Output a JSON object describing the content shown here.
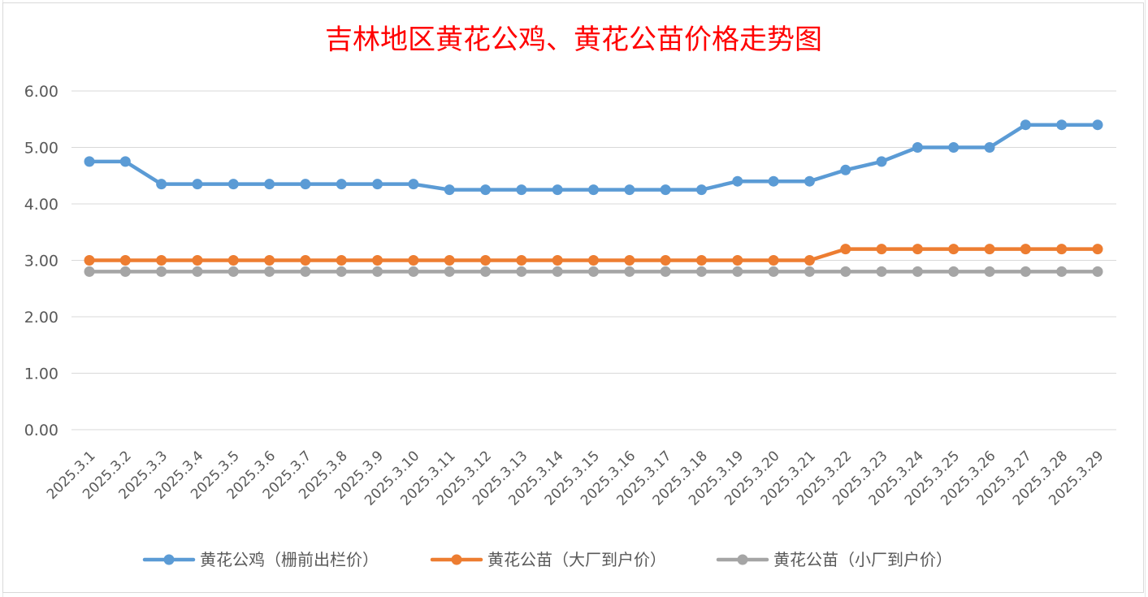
{
  "chart_data": {
    "type": "line",
    "title": "吉林地区黄花公鸡、黄花公苗价格走势图",
    "xlabel": "",
    "ylabel": "",
    "ylim": [
      0,
      6
    ],
    "ytick_step": 1,
    "ytick_labels": [
      "0.00",
      "1.00",
      "2.00",
      "3.00",
      "4.00",
      "5.00",
      "6.00"
    ],
    "grid": true,
    "legend_position": "bottom-center",
    "categories": [
      "2025.3.1",
      "2025.3.2",
      "2025.3.3",
      "2025.3.4",
      "2025.3.5",
      "2025.3.6",
      "2025.3.7",
      "2025.3.8",
      "2025.3.9",
      "2025.3.10",
      "2025.3.11",
      "2025.3.12",
      "2025.3.13",
      "2025.3.14",
      "2025.3.15",
      "2025.3.16",
      "2025.3.17",
      "2025.3.18",
      "2025.3.19",
      "2025.3.20",
      "2025.3.21",
      "2025.3.22",
      "2025.3.23",
      "2025.3.24",
      "2025.3.25",
      "2025.3.26",
      "2025.3.27",
      "2025.3.28",
      "2025.3.29"
    ],
    "series": [
      {
        "name": "黄花公鸡（栅前出栏价）",
        "color": "#5B9BD5",
        "values": [
          4.75,
          4.75,
          4.35,
          4.35,
          4.35,
          4.35,
          4.35,
          4.35,
          4.35,
          4.35,
          4.25,
          4.25,
          4.25,
          4.25,
          4.25,
          4.25,
          4.25,
          4.25,
          4.4,
          4.4,
          4.4,
          4.6,
          4.75,
          5.0,
          5.0,
          5.0,
          5.4,
          5.4,
          5.4
        ]
      },
      {
        "name": "黄花公苗（大厂到户价）",
        "color": "#ED7D31",
        "values": [
          3.0,
          3.0,
          3.0,
          3.0,
          3.0,
          3.0,
          3.0,
          3.0,
          3.0,
          3.0,
          3.0,
          3.0,
          3.0,
          3.0,
          3.0,
          3.0,
          3.0,
          3.0,
          3.0,
          3.0,
          3.0,
          3.2,
          3.2,
          3.2,
          3.2,
          3.2,
          3.2,
          3.2,
          3.2
        ]
      },
      {
        "name": "黄花公苗（小厂到户价）",
        "color": "#A5A5A5",
        "values": [
          2.8,
          2.8,
          2.8,
          2.8,
          2.8,
          2.8,
          2.8,
          2.8,
          2.8,
          2.8,
          2.8,
          2.8,
          2.8,
          2.8,
          2.8,
          2.8,
          2.8,
          2.8,
          2.8,
          2.8,
          2.8,
          2.8,
          2.8,
          2.8,
          2.8,
          2.8,
          2.8,
          2.8,
          2.8
        ]
      }
    ]
  }
}
